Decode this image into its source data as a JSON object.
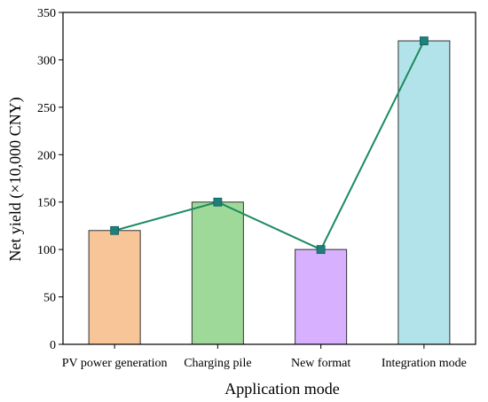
{
  "chart_data": {
    "type": "bar",
    "categories": [
      "PV power generation",
      "Charging pile",
      "New format",
      "Integration mode"
    ],
    "values": [
      120,
      150,
      100,
      320
    ],
    "line_values": [
      120,
      150,
      100,
      320
    ],
    "xlabel": "Application mode",
    "ylabel": "Net yield (×10,000 CNY)",
    "ylim": [
      0,
      350
    ],
    "yticks": [
      0,
      50,
      100,
      150,
      200,
      250,
      300,
      350
    ],
    "grid": false,
    "legend": "none",
    "colors": {
      "bars": [
        "#f8c598",
        "#9ed99a",
        "#d7b0ff",
        "#b3e3ea"
      ],
      "bar_stroke": "#333333",
      "line": "#1a8a5e",
      "marker": "#1e7f7b"
    }
  }
}
